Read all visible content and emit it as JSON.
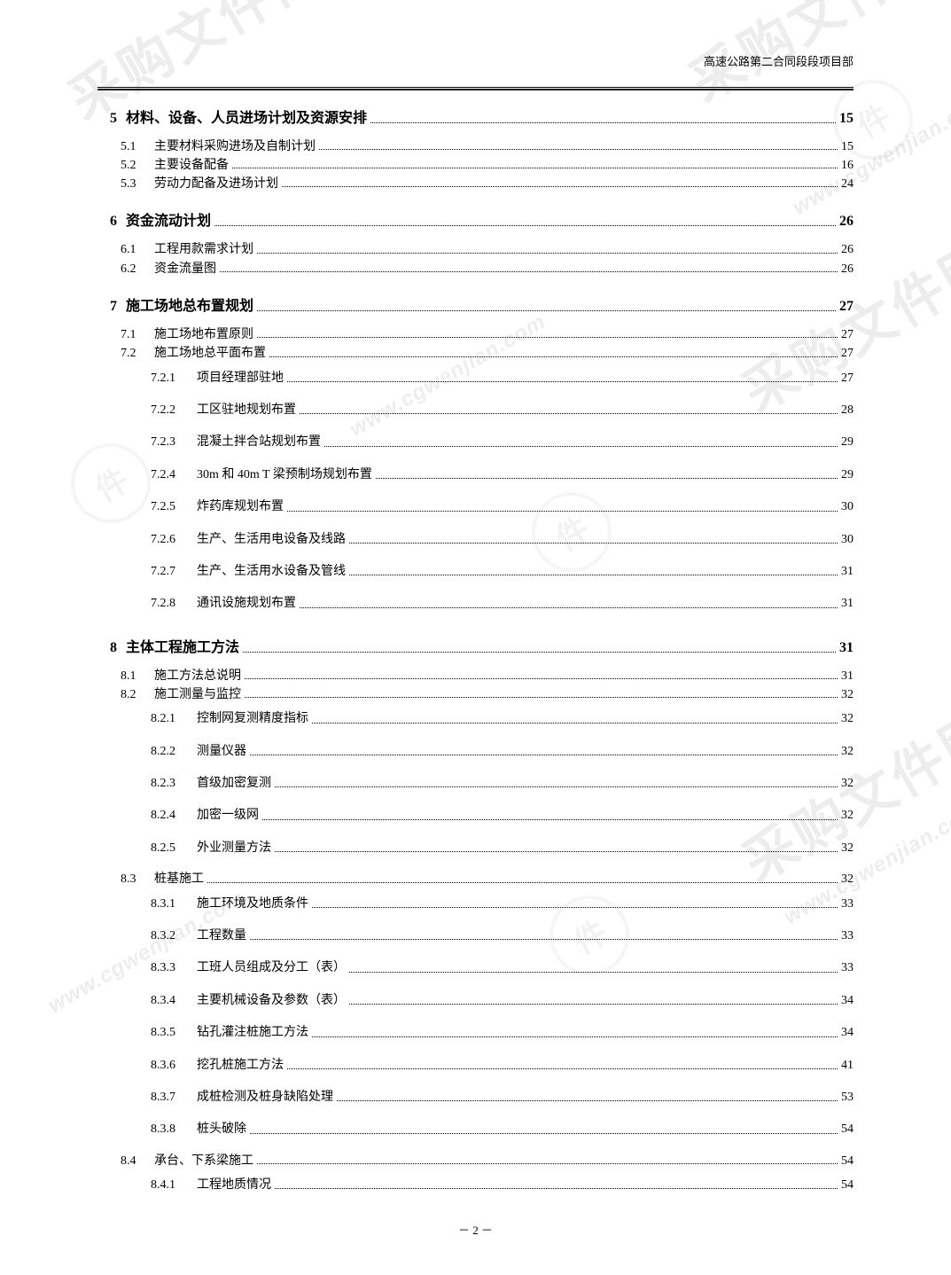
{
  "header": {
    "right": "高速公路第二合同段段项目部"
  },
  "footer": {
    "page_label": "－ 2 －"
  },
  "watermark": {
    "cn": "采购文件网",
    "en": "www.cgwenjian.com",
    "stamp": "件"
  },
  "toc": [
    {
      "level": 1,
      "num": "5",
      "title": "材料、设备、人员进场计划及资源安排",
      "page": "15"
    },
    {
      "level": 2,
      "num": "5.1",
      "title": "主要材料采购进场及自制计划",
      "page": "15"
    },
    {
      "level": 2,
      "num": "5.2",
      "title": "主要设备配备",
      "page": "16"
    },
    {
      "level": 2,
      "num": "5.3",
      "title": "劳动力配备及进场计划",
      "page": "24"
    },
    {
      "level": 1,
      "num": "6",
      "title": "资金流动计划",
      "page": "26"
    },
    {
      "level": 2,
      "num": "6.1",
      "title": "工程用款需求计划",
      "page": "26"
    },
    {
      "level": 2,
      "num": "6.2",
      "title": "资金流量图",
      "page": "26"
    },
    {
      "level": 1,
      "num": "7",
      "title": "施工场地总布置规划",
      "page": "27"
    },
    {
      "level": 2,
      "num": "7.1",
      "title": "施工场地布置原则",
      "page": "27"
    },
    {
      "level": 2,
      "num": "7.2",
      "title": "施工场地总平面布置",
      "page": "27"
    },
    {
      "level": 3,
      "num": "7.2.1",
      "title": "项目经理部驻地",
      "page": "27"
    },
    {
      "level": 3,
      "num": "7.2.2",
      "title": "工区驻地规划布置",
      "page": "28",
      "gap": true
    },
    {
      "level": 3,
      "num": "7.2.3",
      "title": "混凝土拌合站规划布置",
      "page": "29",
      "gap": true
    },
    {
      "level": 3,
      "num": "7.2.4",
      "title": "30m 和 40m T 梁预制场规划布置",
      "page": "29",
      "gap": true
    },
    {
      "level": 3,
      "num": "7.2.5",
      "title": "炸药库规划布置",
      "page": "30",
      "gap": true
    },
    {
      "level": 3,
      "num": "7.2.6",
      "title": "生产、生活用电设备及线路",
      "page": "30",
      "gap": true
    },
    {
      "level": 3,
      "num": "7.2.7",
      "title": "生产、生活用水设备及管线",
      "page": "31",
      "gap": true
    },
    {
      "level": 3,
      "num": "7.2.8",
      "title": "通讯设施规划布置",
      "page": "31",
      "gap": true
    },
    {
      "level": 1,
      "num": "8",
      "title": "主体工程施工方法",
      "page": "31",
      "bigGap": true
    },
    {
      "level": 2,
      "num": "8.1",
      "title": "施工方法总说明",
      "page": "31"
    },
    {
      "level": 2,
      "num": "8.2",
      "title": "施工测量与监控",
      "page": "32"
    },
    {
      "level": 3,
      "num": "8.2.1",
      "title": "控制网复测精度指标",
      "page": "32"
    },
    {
      "level": 3,
      "num": "8.2.2",
      "title": "测量仪器",
      "page": "32",
      "gap": true
    },
    {
      "level": 3,
      "num": "8.2.3",
      "title": "首级加密复测",
      "page": "32",
      "gap": true
    },
    {
      "level": 3,
      "num": "8.2.4",
      "title": "加密一级网",
      "page": "32",
      "gap": true
    },
    {
      "level": 3,
      "num": "8.2.5",
      "title": "外业测量方法",
      "page": "32",
      "gap": true
    },
    {
      "level": 2,
      "num": "8.3",
      "title": "桩基施工",
      "page": "32",
      "gap": true
    },
    {
      "level": 3,
      "num": "8.3.1",
      "title": "施工环境及地质条件",
      "page": "33"
    },
    {
      "level": 3,
      "num": "8.3.2",
      "title": "工程数量",
      "page": "33",
      "gap": true
    },
    {
      "level": 3,
      "num": "8.3.3",
      "title": "工班人员组成及分工（表）",
      "page": "33",
      "gap": true
    },
    {
      "level": 3,
      "num": "8.3.4",
      "title": "主要机械设备及参数（表）",
      "page": "34",
      "gap": true
    },
    {
      "level": 3,
      "num": "8.3.5",
      "title": "钻孔灌注桩施工方法",
      "page": "34",
      "gap": true
    },
    {
      "level": 3,
      "num": "8.3.6",
      "title": "挖孔桩施工方法",
      "page": "41",
      "gap": true
    },
    {
      "level": 3,
      "num": "8.3.7",
      "title": "成桩检测及桩身缺陷处理",
      "page": "53",
      "gap": true
    },
    {
      "level": 3,
      "num": "8.3.8",
      "title": "桩头破除",
      "page": "54",
      "gap": true
    },
    {
      "level": 2,
      "num": "8.4",
      "title": "承台、下系梁施工",
      "page": "54",
      "gap": true
    },
    {
      "level": 3,
      "num": "8.4.1",
      "title": "工程地质情况",
      "page": "54"
    }
  ]
}
